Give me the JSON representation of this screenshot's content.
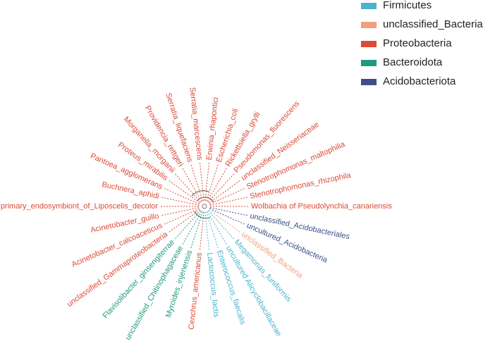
{
  "legend": [
    {
      "name": "Firmicutes",
      "color": "#4bb3cb"
    },
    {
      "name": "unclassified_Bacteria",
      "color": "#f0a07e"
    },
    {
      "name": "Proteobacteria",
      "color": "#db4a36"
    },
    {
      "name": "Bacteroidota",
      "color": "#1f9a80"
    },
    {
      "name": "Acidobacteriota",
      "color": "#3a5087"
    }
  ],
  "leaves": [
    {
      "label": "Wolbachia of Pseudolynchia_canariensis",
      "group": "Proteobacteria"
    },
    {
      "label": "Stenotrophomonas_rhizophila",
      "group": "Proteobacteria"
    },
    {
      "label": "Stenotrophomonas_maltophilia",
      "group": "Proteobacteria"
    },
    {
      "label": "unclassified_Neisseriaceae",
      "group": "Proteobacteria"
    },
    {
      "label": "Pseudomonas_fluorescens",
      "group": "Proteobacteria"
    },
    {
      "label": "Rickettsiella_grylli",
      "group": "Proteobacteria"
    },
    {
      "label": "Escherichia_coli",
      "group": "Proteobacteria"
    },
    {
      "label": "Erwinia_rhapontici",
      "group": "Proteobacteria"
    },
    {
      "label": "Serratia_marcescens",
      "group": "Proteobacteria"
    },
    {
      "label": "Serratia_liquefaciens",
      "group": "Proteobacteria"
    },
    {
      "label": "Providencia_rettgeri",
      "group": "Proteobacteria"
    },
    {
      "label": "Morganella_morganii",
      "group": "Proteobacteria"
    },
    {
      "label": "Proteus_mirabilis",
      "group": "Proteobacteria"
    },
    {
      "label": "Pantoea_agglomerans",
      "group": "Proteobacteria"
    },
    {
      "label": "Buchnera_aphidi",
      "group": "Proteobacteria"
    },
    {
      "label": "primary_endosymbiont_of_Liposcelis_decolor",
      "group": "Proteobacteria"
    },
    {
      "label": "Acinetobacter_guillo",
      "group": "Proteobacteria"
    },
    {
      "label": "Acinetobacter_calcoaceticus",
      "group": "Proteobacteria"
    },
    {
      "label": "unclassified_Gammaproteobacteria",
      "group": "Proteobacteria"
    },
    {
      "label": "Flavisolibacter_ginsengiterrae",
      "group": "Bacteroidota"
    },
    {
      "label": "unclassified_Chitinophagaceae",
      "group": "Bacteroidota"
    },
    {
      "label": "Myroides_injenensis",
      "group": "Bacteroidota"
    },
    {
      "label": "Cenchrus_americanus",
      "group": "Proteobacteria"
    },
    {
      "label": "Lactococcus_lactis",
      "group": "Firmicutes"
    },
    {
      "label": "Enterococcus_faecalis",
      "group": "Firmicutes"
    },
    {
      "label": "uncultured Alicyclobacillaceae",
      "group": "Firmicutes"
    },
    {
      "label": "Megamonas_funiformis",
      "group": "Firmicutes"
    },
    {
      "label": "unclassified_Bacteria",
      "group": "unclassified_Bacteria"
    },
    {
      "label": "uncultured_Acidobacteria",
      "group": "Acidobacteriota"
    },
    {
      "label": "unclassified_Acidobacteriales",
      "group": "Acidobacteriota"
    }
  ]
}
